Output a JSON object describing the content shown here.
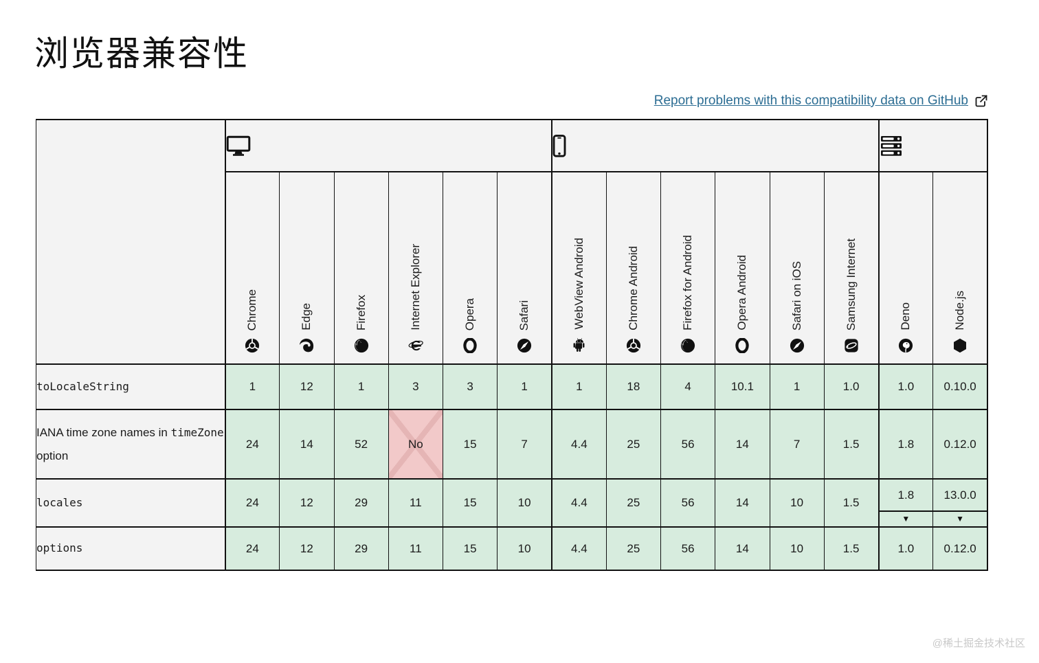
{
  "page": {
    "title": "浏览器兼容性",
    "github_link": "Report problems with this compatibility data on GitHub",
    "note_marker": "▼",
    "watermark": "@稀土掘金技术社区"
  },
  "colors": {
    "support_yes_bg": "#d7ecde",
    "support_no_bg": "#f2c9c9",
    "support_no_cross": "#e5b5b5",
    "header_bg": "#f3f3f3",
    "border": "#111111",
    "link": "#2c6d93",
    "watermark": "#c9c9c9"
  },
  "table": {
    "groups": [
      {
        "name": "desktop",
        "icon": "desktop-icon",
        "span": 6
      },
      {
        "name": "mobile",
        "icon": "mobile-icon",
        "span": 6
      },
      {
        "name": "server",
        "icon": "server-icon",
        "span": 2
      }
    ],
    "browsers": [
      {
        "label": "Chrome",
        "icon": "chrome-icon"
      },
      {
        "label": "Edge",
        "icon": "edge-icon"
      },
      {
        "label": "Firefox",
        "icon": "firefox-icon"
      },
      {
        "label": "Internet Explorer",
        "icon": "internet-explorer-icon"
      },
      {
        "label": "Opera",
        "icon": "opera-icon"
      },
      {
        "label": "Safari",
        "icon": "safari-icon"
      },
      {
        "label": "WebView Android",
        "icon": "webview-android-icon"
      },
      {
        "label": "Chrome Android",
        "icon": "chrome-android-icon"
      },
      {
        "label": "Firefox for Android",
        "icon": "firefox-android-icon"
      },
      {
        "label": "Opera Android",
        "icon": "opera-android-icon"
      },
      {
        "label": "Safari on iOS",
        "icon": "safari-ios-icon"
      },
      {
        "label": "Samsung Internet",
        "icon": "samsung-internet-icon"
      },
      {
        "label": "Deno",
        "icon": "deno-icon"
      },
      {
        "label": "Node.js",
        "icon": "nodejs-icon"
      }
    ],
    "rows": [
      {
        "feature": [
          {
            "text": "toLocaleString",
            "code": true
          }
        ],
        "cells": [
          {
            "v": "1"
          },
          {
            "v": "12"
          },
          {
            "v": "1"
          },
          {
            "v": "3"
          },
          {
            "v": "3"
          },
          {
            "v": "1"
          },
          {
            "v": "1"
          },
          {
            "v": "18"
          },
          {
            "v": "4"
          },
          {
            "v": "10.1"
          },
          {
            "v": "1"
          },
          {
            "v": "1.0"
          },
          {
            "v": "1.0"
          },
          {
            "v": "0.10.0"
          }
        ]
      },
      {
        "feature": [
          {
            "text": "IANA time zone names in ",
            "code": false
          },
          {
            "text": "timeZone",
            "code": true
          },
          {
            "text": " option",
            "code": false
          }
        ],
        "cells": [
          {
            "v": "24"
          },
          {
            "v": "14"
          },
          {
            "v": "52"
          },
          {
            "v": "No",
            "support": "no"
          },
          {
            "v": "15"
          },
          {
            "v": "7"
          },
          {
            "v": "4.4"
          },
          {
            "v": "25"
          },
          {
            "v": "56"
          },
          {
            "v": "14"
          },
          {
            "v": "7"
          },
          {
            "v": "1.5"
          },
          {
            "v": "1.8"
          },
          {
            "v": "0.12.0"
          }
        ]
      },
      {
        "feature": [
          {
            "text": "locales",
            "code": true
          }
        ],
        "cells": [
          {
            "v": "24"
          },
          {
            "v": "12"
          },
          {
            "v": "29"
          },
          {
            "v": "11"
          },
          {
            "v": "15"
          },
          {
            "v": "10"
          },
          {
            "v": "4.4"
          },
          {
            "v": "25"
          },
          {
            "v": "56"
          },
          {
            "v": "14"
          },
          {
            "v": "10"
          },
          {
            "v": "1.5"
          },
          {
            "v": "1.8",
            "note": true
          },
          {
            "v": "13.0.0",
            "note": true
          }
        ]
      },
      {
        "feature": [
          {
            "text": "options",
            "code": true
          }
        ],
        "cells": [
          {
            "v": "24"
          },
          {
            "v": "12"
          },
          {
            "v": "29"
          },
          {
            "v": "11"
          },
          {
            "v": "15"
          },
          {
            "v": "10"
          },
          {
            "v": "4.4"
          },
          {
            "v": "25"
          },
          {
            "v": "56"
          },
          {
            "v": "14"
          },
          {
            "v": "10"
          },
          {
            "v": "1.5"
          },
          {
            "v": "1.0"
          },
          {
            "v": "0.12.0"
          }
        ]
      }
    ]
  }
}
